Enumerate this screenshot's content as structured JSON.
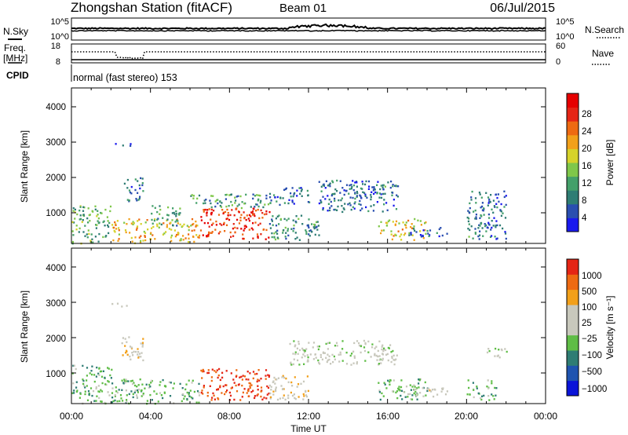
{
  "header": {
    "station": "Zhongshan Station (fitACF)",
    "beam": "Beam 01",
    "date": "06/Jul/2015"
  },
  "summary": {
    "nsky_label": "N.Sky",
    "nsky_ticks": [
      "10^5",
      "10^0"
    ],
    "nsearch_label": "N.Search",
    "nsearch_ticks": [
      "10^5",
      "10^0"
    ],
    "freq_label": "Freq.",
    "freq_unit": "[MHz]",
    "freq_ticks": [
      "18",
      "8"
    ],
    "nave_label": "Nave",
    "nave_ticks": [
      "60",
      "0"
    ],
    "cpid_label": "CPID",
    "cpid_text": "normal (fast stereo) 153",
    "colors": {
      "data": "#000000"
    }
  },
  "axes": {
    "x_label": "Time UT",
    "x_ticks": [
      "00:00",
      "04:00",
      "08:00",
      "12:00",
      "16:00",
      "20:00",
      "00:00"
    ],
    "y_label": "Slant Range [km]",
    "y_ticks": [
      "4000",
      "3000",
      "2000",
      "1000"
    ]
  },
  "colorbars": {
    "power": {
      "label": "Power [dB]",
      "ticks": [
        "28",
        "24",
        "20",
        "16",
        "12",
        "8",
        "4"
      ],
      "colors": [
        "#1a1aee",
        "#2a4fb0",
        "#2f7d74",
        "#44a06a",
        "#7fc74a",
        "#d6d22a",
        "#f2a01a",
        "#ee6a12",
        "#e52515",
        "#e60000"
      ]
    },
    "velocity": {
      "label": "Velocity [m s⁻¹]",
      "ticks": [
        "1000",
        "500",
        "100",
        "25",
        "−25",
        "−100",
        "−500",
        "−1000"
      ],
      "colors": [
        "#0a14d8",
        "#1f54b0",
        "#2f7d74",
        "#5fbd46",
        "#c8c8bc",
        "#c8c8bc",
        "#f2a01a",
        "#ee6a12",
        "#e52515"
      ]
    }
  },
  "chart_data": [
    {
      "type": "heatmap",
      "title": "Power",
      "xlabel": "Time UT",
      "ylabel": "Slant Range [km]",
      "x_range": [
        "00:00",
        "00:00"
      ],
      "ylim": [
        180,
        4600
      ],
      "colorbar": {
        "label": "Power [dB]",
        "range": [
          0,
          32
        ],
        "ticks": [
          4,
          8,
          12,
          16,
          20,
          24,
          28
        ]
      },
      "regions": [
        {
          "t": [
            0.0,
            2.0
          ],
          "r": [
            200,
            1300
          ],
          "v": 12
        },
        {
          "t": [
            2.0,
            6.5
          ],
          "r": [
            200,
            900
          ],
          "v": 20
        },
        {
          "t": [
            2.5,
            3.6
          ],
          "r": [
            1400,
            2100
          ],
          "v": 8
        },
        {
          "t": [
            4.0,
            5.5
          ],
          "r": [
            700,
            1300
          ],
          "v": 10
        },
        {
          "t": [
            6.5,
            10.0
          ],
          "r": [
            300,
            1200
          ],
          "v": 28
        },
        {
          "t": [
            6.0,
            10.0
          ],
          "r": [
            1200,
            1600
          ],
          "v": 10
        },
        {
          "t": [
            10.0,
            12.0
          ],
          "r": [
            1300,
            1800
          ],
          "v": 6
        },
        {
          "t": [
            10.0,
            12.5
          ],
          "r": [
            300,
            1000
          ],
          "v": 10
        },
        {
          "t": [
            12.5,
            16.5
          ],
          "r": [
            1100,
            2000
          ],
          "v": 6
        },
        {
          "t": [
            14.0,
            16.0
          ],
          "r": [
            1500,
            1900
          ],
          "v": 8
        },
        {
          "t": [
            15.5,
            18.0
          ],
          "r": [
            300,
            900
          ],
          "v": 18
        },
        {
          "t": [
            17.0,
            19.0
          ],
          "r": [
            400,
            650
          ],
          "v": 6
        },
        {
          "t": [
            20.0,
            21.0
          ],
          "r": [
            300,
            1700
          ],
          "v": 8
        },
        {
          "t": [
            21.0,
            22.0
          ],
          "r": [
            300,
            1700
          ],
          "v": 6
        },
        {
          "t": [
            2.0,
            3.0
          ],
          "r": [
            2950,
            3050
          ],
          "v": 6
        }
      ]
    },
    {
      "type": "heatmap",
      "title": "Velocity",
      "xlabel": "Time UT",
      "ylabel": "Slant Range [km]",
      "x_range": [
        "00:00",
        "00:00"
      ],
      "ylim": [
        180,
        4600
      ],
      "colorbar": {
        "label": "Velocity [m s⁻¹]",
        "range": [
          -1200,
          1200
        ],
        "ticks": [
          1000,
          500,
          100,
          25,
          -25,
          -100,
          -500,
          -1000
        ]
      },
      "regions": [
        {
          "t": [
            0.0,
            2.0
          ],
          "r": [
            200,
            1300
          ],
          "v": -300
        },
        {
          "t": [
            2.0,
            6.5
          ],
          "r": [
            200,
            900
          ],
          "v": -300
        },
        {
          "t": [
            2.5,
            3.6
          ],
          "r": [
            1400,
            2100
          ],
          "v": 300
        },
        {
          "t": [
            6.5,
            10.0
          ],
          "r": [
            300,
            1200
          ],
          "v": 1000
        },
        {
          "t": [
            10.0,
            12.0
          ],
          "r": [
            300,
            1000
          ],
          "v": 300
        },
        {
          "t": [
            11.0,
            16.5
          ],
          "r": [
            1300,
            2000
          ],
          "v": 0
        },
        {
          "t": [
            15.5,
            18.0
          ],
          "r": [
            300,
            900
          ],
          "v": -300
        },
        {
          "t": [
            17.0,
            19.0
          ],
          "r": [
            400,
            650
          ],
          "v": 200
        },
        {
          "t": [
            20.0,
            21.5
          ],
          "r": [
            300,
            900
          ],
          "v": -300
        },
        {
          "t": [
            21.0,
            22.0
          ],
          "r": [
            1500,
            1800
          ],
          "v": 0
        },
        {
          "t": [
            2.0,
            3.0
          ],
          "r": [
            2950,
            3050
          ],
          "v": 300
        }
      ]
    }
  ]
}
